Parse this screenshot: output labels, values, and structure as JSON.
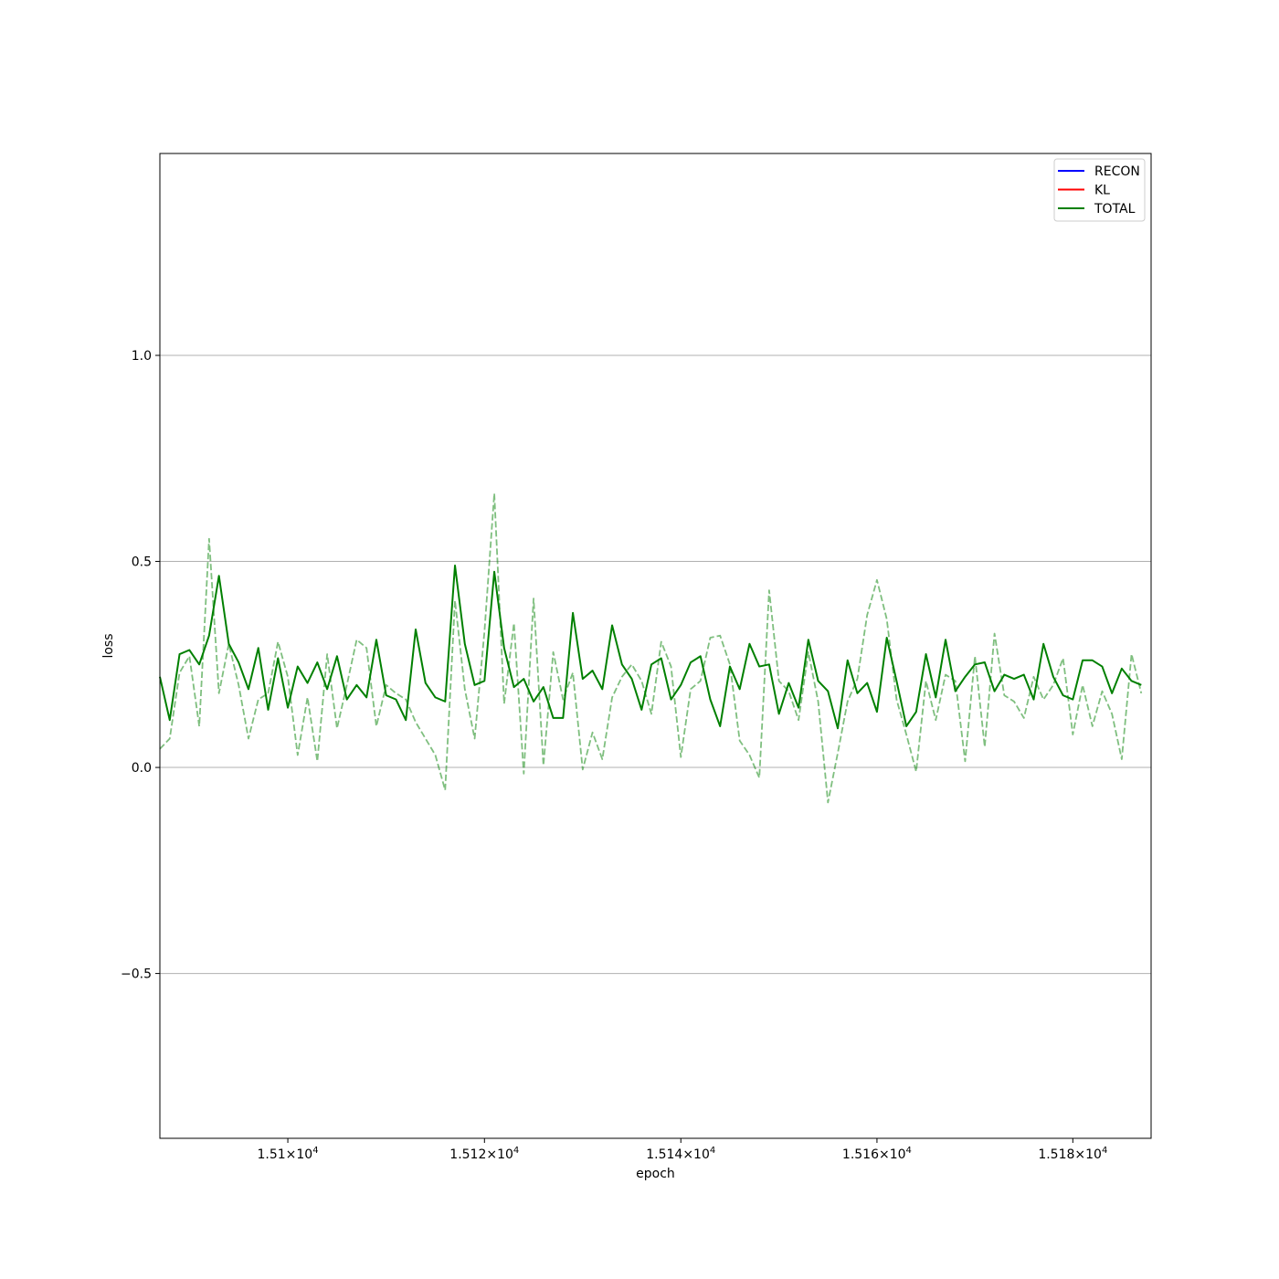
{
  "chart_data": {
    "type": "line",
    "title": "",
    "xlabel": "epoch",
    "ylabel": "loss",
    "xscale": "log",
    "xlim": [
      15087,
      15188
    ],
    "ylim": [
      -0.9,
      1.49
    ],
    "grid": "y-major",
    "legend": {
      "placement": "top-right",
      "entries": [
        {
          "name": "RECON",
          "color": "#0000ff"
        },
        {
          "name": "KL",
          "color": "#ff0000"
        },
        {
          "name": "TOTAL",
          "color": "#008000"
        }
      ]
    },
    "x_ticks": [
      {
        "value": 15100,
        "label_main": "1.51",
        "label_exp": "4"
      },
      {
        "value": 15120,
        "label_main": "1.512",
        "label_exp": "4"
      },
      {
        "value": 15140,
        "label_main": "1.514",
        "label_exp": "4"
      },
      {
        "value": 15160,
        "label_main": "1.516",
        "label_exp": "4"
      },
      {
        "value": 15180,
        "label_main": "1.518",
        "label_exp": "4"
      }
    ],
    "y_ticks": [
      {
        "value": -0.5,
        "label": "−0.5"
      },
      {
        "value": 0.0,
        "label": "0.0"
      },
      {
        "value": 0.5,
        "label": "0.5"
      },
      {
        "value": 1.0,
        "label": "1.0"
      }
    ],
    "x": [
      15087,
      15088,
      15089,
      15090,
      15091,
      15092,
      15093,
      15094,
      15095,
      15096,
      15097,
      15098,
      15099,
      15100,
      15101,
      15102,
      15103,
      15104,
      15105,
      15106,
      15107,
      15108,
      15109,
      15110,
      15111,
      15112,
      15113,
      15114,
      15115,
      15116,
      15117,
      15118,
      15119,
      15120,
      15121,
      15122,
      15123,
      15124,
      15125,
      15126,
      15127,
      15128,
      15129,
      15130,
      15131,
      15132,
      15133,
      15134,
      15135,
      15136,
      15137,
      15138,
      15139,
      15140,
      15141,
      15142,
      15143,
      15144,
      15145,
      15146,
      15147,
      15148,
      15149,
      15150,
      15151,
      15152,
      15153,
      15154,
      15155,
      15156,
      15157,
      15158,
      15159,
      15160,
      15161,
      15162,
      15163,
      15164,
      15165,
      15166,
      15167,
      15168,
      15169,
      15170,
      15171,
      15172,
      15173,
      15174,
      15175,
      15176,
      15177,
      15178,
      15179,
      15180,
      15181,
      15182,
      15183,
      15184,
      15185,
      15186,
      15187
    ],
    "series": [
      {
        "name": "TOTAL",
        "color": "#008000",
        "style": "solid",
        "values": [
          0.22,
          0.115,
          0.275,
          0.285,
          0.25,
          0.32,
          0.465,
          0.3,
          0.255,
          0.19,
          0.29,
          0.14,
          0.265,
          0.145,
          0.245,
          0.205,
          0.255,
          0.19,
          0.27,
          0.165,
          0.2,
          0.17,
          0.31,
          0.175,
          0.165,
          0.115,
          0.335,
          0.205,
          0.17,
          0.16,
          0.49,
          0.3,
          0.2,
          0.21,
          0.475,
          0.29,
          0.195,
          0.215,
          0.16,
          0.195,
          0.12,
          0.12,
          0.375,
          0.215,
          0.235,
          0.19,
          0.345,
          0.25,
          0.215,
          0.14,
          0.25,
          0.265,
          0.165,
          0.2,
          0.255,
          0.27,
          0.165,
          0.1,
          0.245,
          0.19,
          0.3,
          0.245,
          0.25,
          0.13,
          0.205,
          0.145,
          0.31,
          0.21,
          0.185,
          0.095,
          0.26,
          0.18,
          0.205,
          0.135,
          0.315,
          0.21,
          0.1,
          0.135,
          0.275,
          0.17,
          0.31,
          0.185,
          0.22,
          0.25,
          0.255,
          0.185,
          0.225,
          0.215,
          0.225,
          0.165,
          0.3,
          0.22,
          0.175,
          0.165,
          0.26,
          0.26,
          0.245,
          0.18,
          0.24,
          0.21,
          0.2
        ]
      },
      {
        "name": "",
        "color": "#008000",
        "style": "dashed",
        "opacity": 0.5,
        "values": [
          0.045,
          0.07,
          0.23,
          0.27,
          0.1,
          0.555,
          0.18,
          0.3,
          0.2,
          0.07,
          0.165,
          0.18,
          0.305,
          0.22,
          0.03,
          0.17,
          0.015,
          0.275,
          0.095,
          0.2,
          0.31,
          0.29,
          0.1,
          0.2,
          0.18,
          0.165,
          0.11,
          0.07,
          0.03,
          -0.055,
          0.405,
          0.19,
          0.07,
          0.33,
          0.665,
          0.155,
          0.35,
          -0.015,
          0.41,
          0.005,
          0.28,
          0.165,
          0.23,
          -0.005,
          0.085,
          0.02,
          0.17,
          0.22,
          0.25,
          0.21,
          0.13,
          0.305,
          0.245,
          0.025,
          0.19,
          0.21,
          0.315,
          0.32,
          0.25,
          0.065,
          0.03,
          -0.025,
          0.43,
          0.21,
          0.185,
          0.115,
          0.28,
          0.16,
          -0.085,
          0.035,
          0.16,
          0.215,
          0.37,
          0.455,
          0.36,
          0.165,
          0.08,
          -0.01,
          0.21,
          0.115,
          0.225,
          0.21,
          0.015,
          0.27,
          0.05,
          0.325,
          0.175,
          0.16,
          0.12,
          0.22,
          0.165,
          0.2,
          0.265,
          0.08,
          0.2,
          0.1,
          0.185,
          0.13,
          0.02,
          0.275,
          0.18
        ]
      }
    ]
  }
}
